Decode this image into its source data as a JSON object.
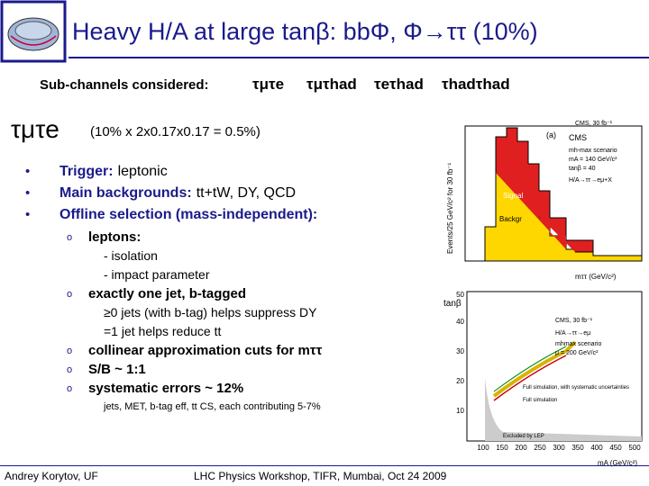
{
  "header": {
    "title": "Heavy H/A at large tanβ: bbΦ, Φ→ττ (10%)"
  },
  "subchannels": {
    "label": "Sub-channels considered:",
    "items": [
      "τμτe",
      "τμτhad",
      "τeτhad",
      "τhadτhad"
    ]
  },
  "section": {
    "title": "τμτe",
    "note": "(10% x 2x0.17x0.17 = 0.5%)"
  },
  "bullets": [
    {
      "label": "Trigger:",
      "text": "leptonic"
    },
    {
      "label": "Main backgrounds:",
      "text": "tt+tW, DY, QCD"
    },
    {
      "label": "Offline selection (mass-independent):",
      "text": ""
    }
  ],
  "sub_bullets": [
    {
      "text": "leptons:",
      "details": [
        "- isolation",
        "- impact parameter"
      ]
    },
    {
      "text": "exactly one jet, b-tagged",
      "details": [
        "≥0 jets (with b-tag) helps suppress DY",
        "=1 jet helps reduce tt"
      ]
    },
    {
      "text": "collinear approximation cuts for mττ"
    },
    {
      "text": "S/B ~ 1:1"
    },
    {
      "text": "systematic errors ~ 12%"
    }
  ],
  "footnote": "jets, MET, b-tag eff, tt CS, each contributing 5-7%",
  "figures": {
    "top": {
      "panel": "(a)",
      "experiment": "CMS",
      "lines": [
        "mh-max scenario",
        "mA = 140 GeV/c²",
        "tanβ = 40",
        "H/A→ττ→eμ+X"
      ],
      "signal": "Signal",
      "background": "Backgr",
      "y_label": "Events/25 GeV/c² for 30 fb⁻¹",
      "x_label": "mττ (GeV/c²)",
      "lumi": "CMS, 30 fb⁻¹"
    },
    "bottom": {
      "y_label": "tanβ",
      "yticks": [
        "10",
        "20",
        "30",
        "40",
        "50"
      ],
      "lines": [
        "CMS, 30 fb⁻¹",
        "H/A→ττ→eμ",
        "mhmax scenario",
        "μ = 200 GeV/c²"
      ],
      "legend": [
        "Full simulation, with systematic uncertainties",
        "Full simulation"
      ],
      "excluded": "Excluded by LEP",
      "xticks": [
        "100",
        "150",
        "200",
        "250",
        "300",
        "350",
        "400",
        "450",
        "500"
      ],
      "x_label": "mA (GeV/c²)"
    }
  },
  "footer": {
    "author": "Andrey Korytov, UF",
    "event": "LHC Physics Workshop, TIFR, Mumbai, Oct 24 2009"
  }
}
